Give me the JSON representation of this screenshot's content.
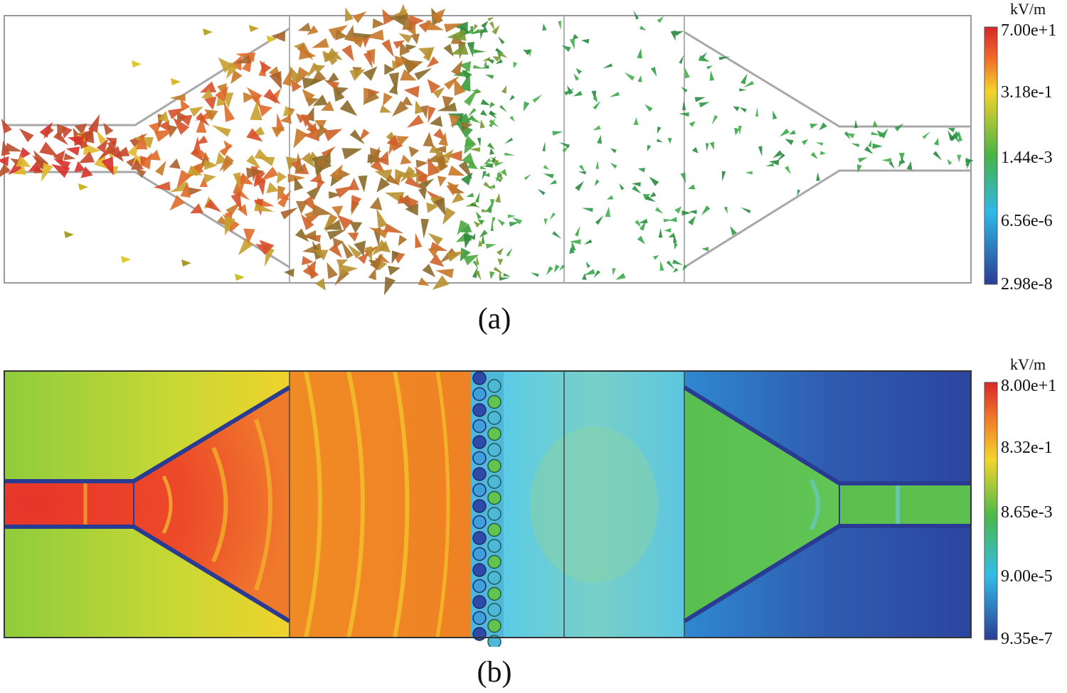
{
  "panel_a": {
    "caption": "(a)",
    "colorbar": {
      "unit": "kV/m",
      "ticks": [
        "7.00e+1",
        "3.18e-1",
        "1.44e-3",
        "6.56e-6",
        "2.98e-8"
      ]
    },
    "colors": {
      "high": "#d83a2a",
      "mid_high": "#c8801e",
      "mid": "#3da63d",
      "low": "#35b2e0",
      "lowest": "#2c3f97"
    }
  },
  "panel_b": {
    "caption": "(b)",
    "colorbar": {
      "unit": "kV/m",
      "ticks": [
        "8.00e+1",
        "8.32e-1",
        "8.65e-3",
        "9.00e-5",
        "9.35e-7"
      ]
    },
    "colors": {
      "high": "#e8452a",
      "orange": "#f08a24",
      "yellow": "#d8d830",
      "green": "#5cc24a",
      "cyan": "#4fc4e8",
      "blue": "#2f56a8"
    }
  }
}
